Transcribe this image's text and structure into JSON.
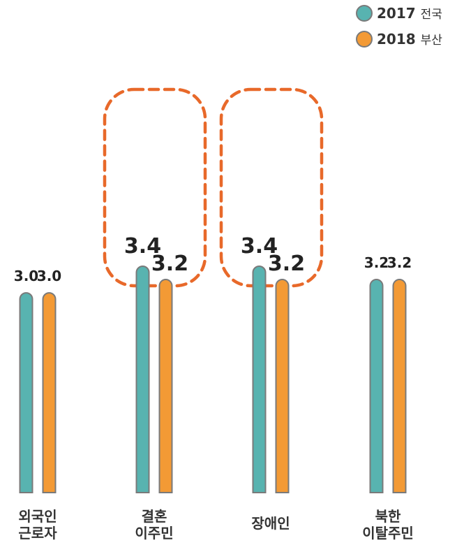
{
  "chart_data": {
    "type": "bar",
    "categories": [
      [
        "외국인",
        "근로자"
      ],
      [
        "결혼",
        "이주민"
      ],
      [
        "장애인"
      ],
      [
        "북한",
        "이탈주민"
      ]
    ],
    "series": [
      {
        "name": "2017 전국",
        "year": "2017",
        "region": "전국",
        "color": "#58b3b0",
        "values": [
          3.0,
          3.4,
          3.4,
          3.2
        ]
      },
      {
        "name": "2018 부산",
        "year": "2018",
        "region": "부산",
        "color": "#f39a35",
        "values": [
          3.0,
          3.2,
          3.2,
          3.2
        ]
      }
    ],
    "value_labels": [
      [
        "3.0",
        "3.4",
        "3.4",
        "3.2"
      ],
      [
        "3.0",
        "3.2",
        "3.2",
        "3.2"
      ]
    ],
    "highlighted_categories": [
      1,
      2
    ],
    "highlight_color": "#e8692a",
    "legend_position": "top-right",
    "grid": false,
    "title": "",
    "xlabel": "",
    "ylabel": ""
  }
}
